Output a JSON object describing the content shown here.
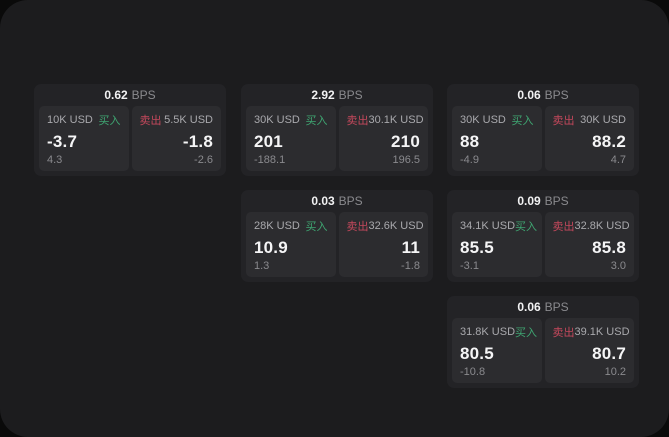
{
  "labels": {
    "bps": "BPS",
    "buy": "买入",
    "sell": "卖出"
  },
  "colors": {
    "buy": "#3fa672",
    "sell": "#c4485c",
    "panel": "#1c1c1e",
    "card": "#232326",
    "pane": "#2c2c2f"
  },
  "cards": [
    {
      "bps": "0.62",
      "buy": {
        "amount": "10K USD",
        "value": "-3.7",
        "delta": "4.3"
      },
      "sell": {
        "amount": "5.5K USD",
        "value": "-1.8",
        "delta": "-2.6"
      }
    },
    {
      "bps": "2.92",
      "buy": {
        "amount": "30K USD",
        "value": "201",
        "delta": "-188.1"
      },
      "sell": {
        "amount": "30.1K USD",
        "value": "210",
        "delta": "196.5"
      }
    },
    {
      "bps": "0.06",
      "buy": {
        "amount": "30K USD",
        "value": "88",
        "delta": "-4.9"
      },
      "sell": {
        "amount": "30K USD",
        "value": "88.2",
        "delta": "4.7"
      }
    },
    {
      "bps": "0.03",
      "buy": {
        "amount": "28K USD",
        "value": "10.9",
        "delta": "1.3"
      },
      "sell": {
        "amount": "32.6K USD",
        "value": "11",
        "delta": "-1.8"
      }
    },
    {
      "bps": "0.09",
      "buy": {
        "amount": "34.1K USD",
        "value": "85.5",
        "delta": "-3.1"
      },
      "sell": {
        "amount": "32.8K USD",
        "value": "85.8",
        "delta": "3.0"
      }
    },
    {
      "bps": "0.06",
      "buy": {
        "amount": "31.8K USD",
        "value": "80.5",
        "delta": "-10.8"
      },
      "sell": {
        "amount": "39.1K USD",
        "value": "80.7",
        "delta": "10.2"
      }
    }
  ]
}
